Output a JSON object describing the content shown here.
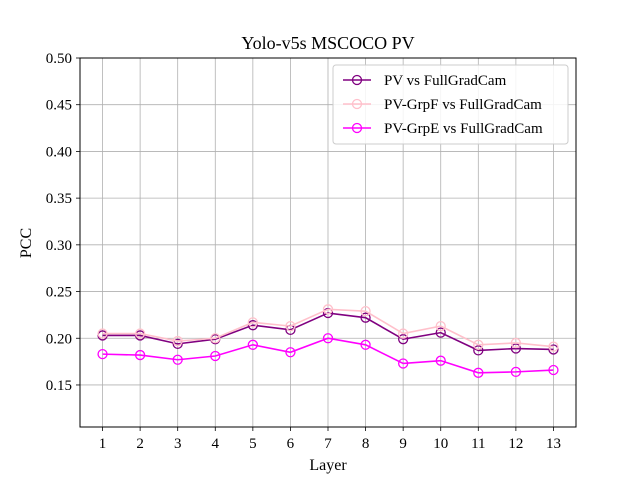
{
  "chart_data": {
    "type": "line",
    "title": "Yolo-v5s MSCOCO PV",
    "xlabel": "Layer",
    "ylabel": "PCC",
    "x": [
      1,
      2,
      3,
      4,
      5,
      6,
      7,
      8,
      9,
      10,
      11,
      12,
      13
    ],
    "xlim": [
      0.4,
      13.6
    ],
    "ylim": [
      0.105,
      0.5
    ],
    "yticks": [
      0.15,
      0.2,
      0.25,
      0.3,
      0.35,
      0.4,
      0.45,
      0.5
    ],
    "grid": true,
    "legend_position": "top-right",
    "series": [
      {
        "name": "PV vs FullGradCam",
        "color": "#800080",
        "marker": "open-circle",
        "values": [
          0.203,
          0.203,
          0.194,
          0.199,
          0.214,
          0.209,
          0.227,
          0.222,
          0.199,
          0.206,
          0.187,
          0.189,
          0.188
        ]
      },
      {
        "name": "PV-GrpF vs FullGradCam",
        "color": "#ffc0cb",
        "marker": "open-circle",
        "values": [
          0.205,
          0.205,
          0.197,
          0.2,
          0.217,
          0.213,
          0.231,
          0.229,
          0.205,
          0.213,
          0.193,
          0.195,
          0.191
        ]
      },
      {
        "name": "PV-GrpE vs FullGradCam",
        "color": "#ff00ff",
        "marker": "open-circle",
        "values": [
          0.183,
          0.182,
          0.177,
          0.181,
          0.193,
          0.185,
          0.2,
          0.193,
          0.173,
          0.176,
          0.163,
          0.164,
          0.166
        ]
      }
    ]
  }
}
